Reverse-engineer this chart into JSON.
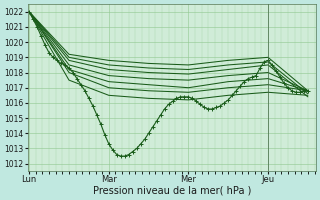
{
  "background_color": "#c0e8e0",
  "plot_bg_color": "#d0ecd8",
  "grid_color": "#90c890",
  "line_color": "#1a5c1a",
  "xlabel": "Pression niveau de la mer( hPa )",
  "ylim": [
    1011.5,
    1022.5
  ],
  "yticks": [
    1012,
    1013,
    1014,
    1015,
    1016,
    1017,
    1018,
    1019,
    1020,
    1021,
    1022
  ],
  "xtick_labels": [
    "Lun",
    "Mar",
    "Mer",
    "Jeu"
  ],
  "figsize": [
    3.2,
    2.0
  ],
  "dpi": 100,
  "smooth_lines": [
    {
      "x": [
        0,
        0.5,
        1.0,
        1.5,
        2.0,
        2.5,
        3.0,
        3.5
      ],
      "y": [
        1022,
        1019.2,
        1018.8,
        1018.6,
        1018.5,
        1018.8,
        1019.0,
        1016.8
      ]
    },
    {
      "x": [
        0,
        0.5,
        1.0,
        1.5,
        2.0,
        2.5,
        3.0,
        3.5
      ],
      "y": [
        1022,
        1019.0,
        1018.5,
        1018.3,
        1018.2,
        1018.5,
        1018.7,
        1016.6
      ]
    },
    {
      "x": [
        0,
        0.5,
        1.0,
        1.5,
        2.0,
        2.5,
        3.0,
        3.5
      ],
      "y": [
        1022,
        1018.8,
        1018.2,
        1018.0,
        1017.9,
        1018.2,
        1018.5,
        1016.4
      ]
    },
    {
      "x": [
        0,
        0.5,
        1.0,
        1.5,
        2.0,
        2.5,
        3.0,
        3.5
      ],
      "y": [
        1022,
        1018.5,
        1017.8,
        1017.6,
        1017.5,
        1017.8,
        1018.0,
        1016.8
      ]
    },
    {
      "x": [
        0,
        0.5,
        1.0,
        1.5,
        2.0,
        2.5,
        3.0,
        3.5
      ],
      "y": [
        1022,
        1018.2,
        1017.4,
        1017.2,
        1017.0,
        1017.4,
        1017.6,
        1016.8
      ]
    },
    {
      "x": [
        0,
        0.5,
        1.0,
        1.5,
        2.0,
        2.5,
        3.0,
        3.5
      ],
      "y": [
        1022,
        1018.0,
        1017.0,
        1016.8,
        1016.7,
        1017.0,
        1017.2,
        1016.8
      ]
    },
    {
      "x": [
        0,
        0.5,
        1.0,
        1.5,
        2.0,
        2.5,
        3.0,
        3.5
      ],
      "y": [
        1022,
        1017.5,
        1016.5,
        1016.3,
        1016.2,
        1016.5,
        1016.7,
        1016.5
      ]
    }
  ],
  "marker_line": {
    "x": [
      0.0,
      0.05,
      0.1,
      0.15,
      0.2,
      0.25,
      0.3,
      0.35,
      0.4,
      0.45,
      0.5,
      0.55,
      0.6,
      0.65,
      0.7,
      0.75,
      0.8,
      0.85,
      0.9,
      0.95,
      1.0,
      1.05,
      1.1,
      1.15,
      1.2,
      1.25,
      1.3,
      1.35,
      1.4,
      1.45,
      1.5,
      1.55,
      1.6,
      1.65,
      1.7,
      1.75,
      1.8,
      1.85,
      1.9,
      1.95,
      2.0,
      2.05,
      2.1,
      2.15,
      2.2,
      2.25,
      2.3,
      2.35,
      2.4,
      2.45,
      2.5,
      2.55,
      2.6,
      2.65,
      2.7,
      2.75,
      2.8,
      2.85,
      2.9,
      2.95,
      3.0,
      3.05,
      3.1,
      3.15,
      3.2,
      3.25,
      3.3,
      3.35,
      3.4,
      3.45,
      3.5
    ],
    "y": [
      1022.0,
      1021.5,
      1021.0,
      1020.4,
      1019.8,
      1019.3,
      1019.0,
      1018.8,
      1018.6,
      1018.5,
      1018.3,
      1018.0,
      1017.6,
      1017.2,
      1016.8,
      1016.3,
      1015.8,
      1015.2,
      1014.6,
      1013.9,
      1013.3,
      1012.9,
      1012.6,
      1012.5,
      1012.5,
      1012.6,
      1012.8,
      1013.0,
      1013.3,
      1013.6,
      1014.0,
      1014.4,
      1014.8,
      1015.2,
      1015.6,
      1015.9,
      1016.1,
      1016.3,
      1016.4,
      1016.4,
      1016.4,
      1016.3,
      1016.1,
      1015.9,
      1015.7,
      1015.6,
      1015.6,
      1015.7,
      1015.8,
      1016.0,
      1016.2,
      1016.5,
      1016.8,
      1017.1,
      1017.4,
      1017.6,
      1017.7,
      1017.8,
      1018.3,
      1018.7,
      1018.8,
      1018.5,
      1018.1,
      1017.7,
      1017.3,
      1017.0,
      1016.8,
      1016.7,
      1016.7,
      1016.8,
      1016.8
    ]
  }
}
